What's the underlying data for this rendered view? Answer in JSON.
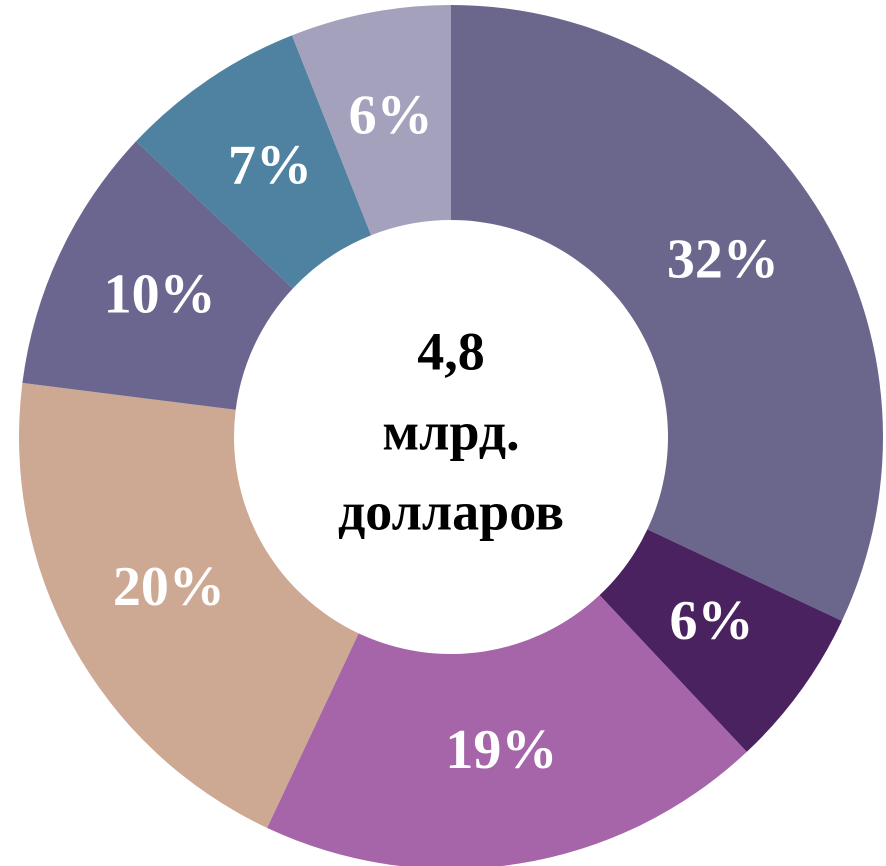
{
  "chart_data": {
    "type": "donut",
    "center_text": [
      "4,8",
      "млрд.",
      "долларов"
    ],
    "values": [
      32,
      6,
      19,
      20,
      10,
      7,
      6
    ],
    "value_labels": [
      "32%",
      "6%",
      "19%",
      "20%",
      "10%",
      "7%",
      "6%"
    ],
    "colors": [
      "#6b668c",
      "#4b2260",
      "#a565a8",
      "#cda893",
      "#6b6690",
      "#4e82a0",
      "#a4a1bc"
    ]
  }
}
